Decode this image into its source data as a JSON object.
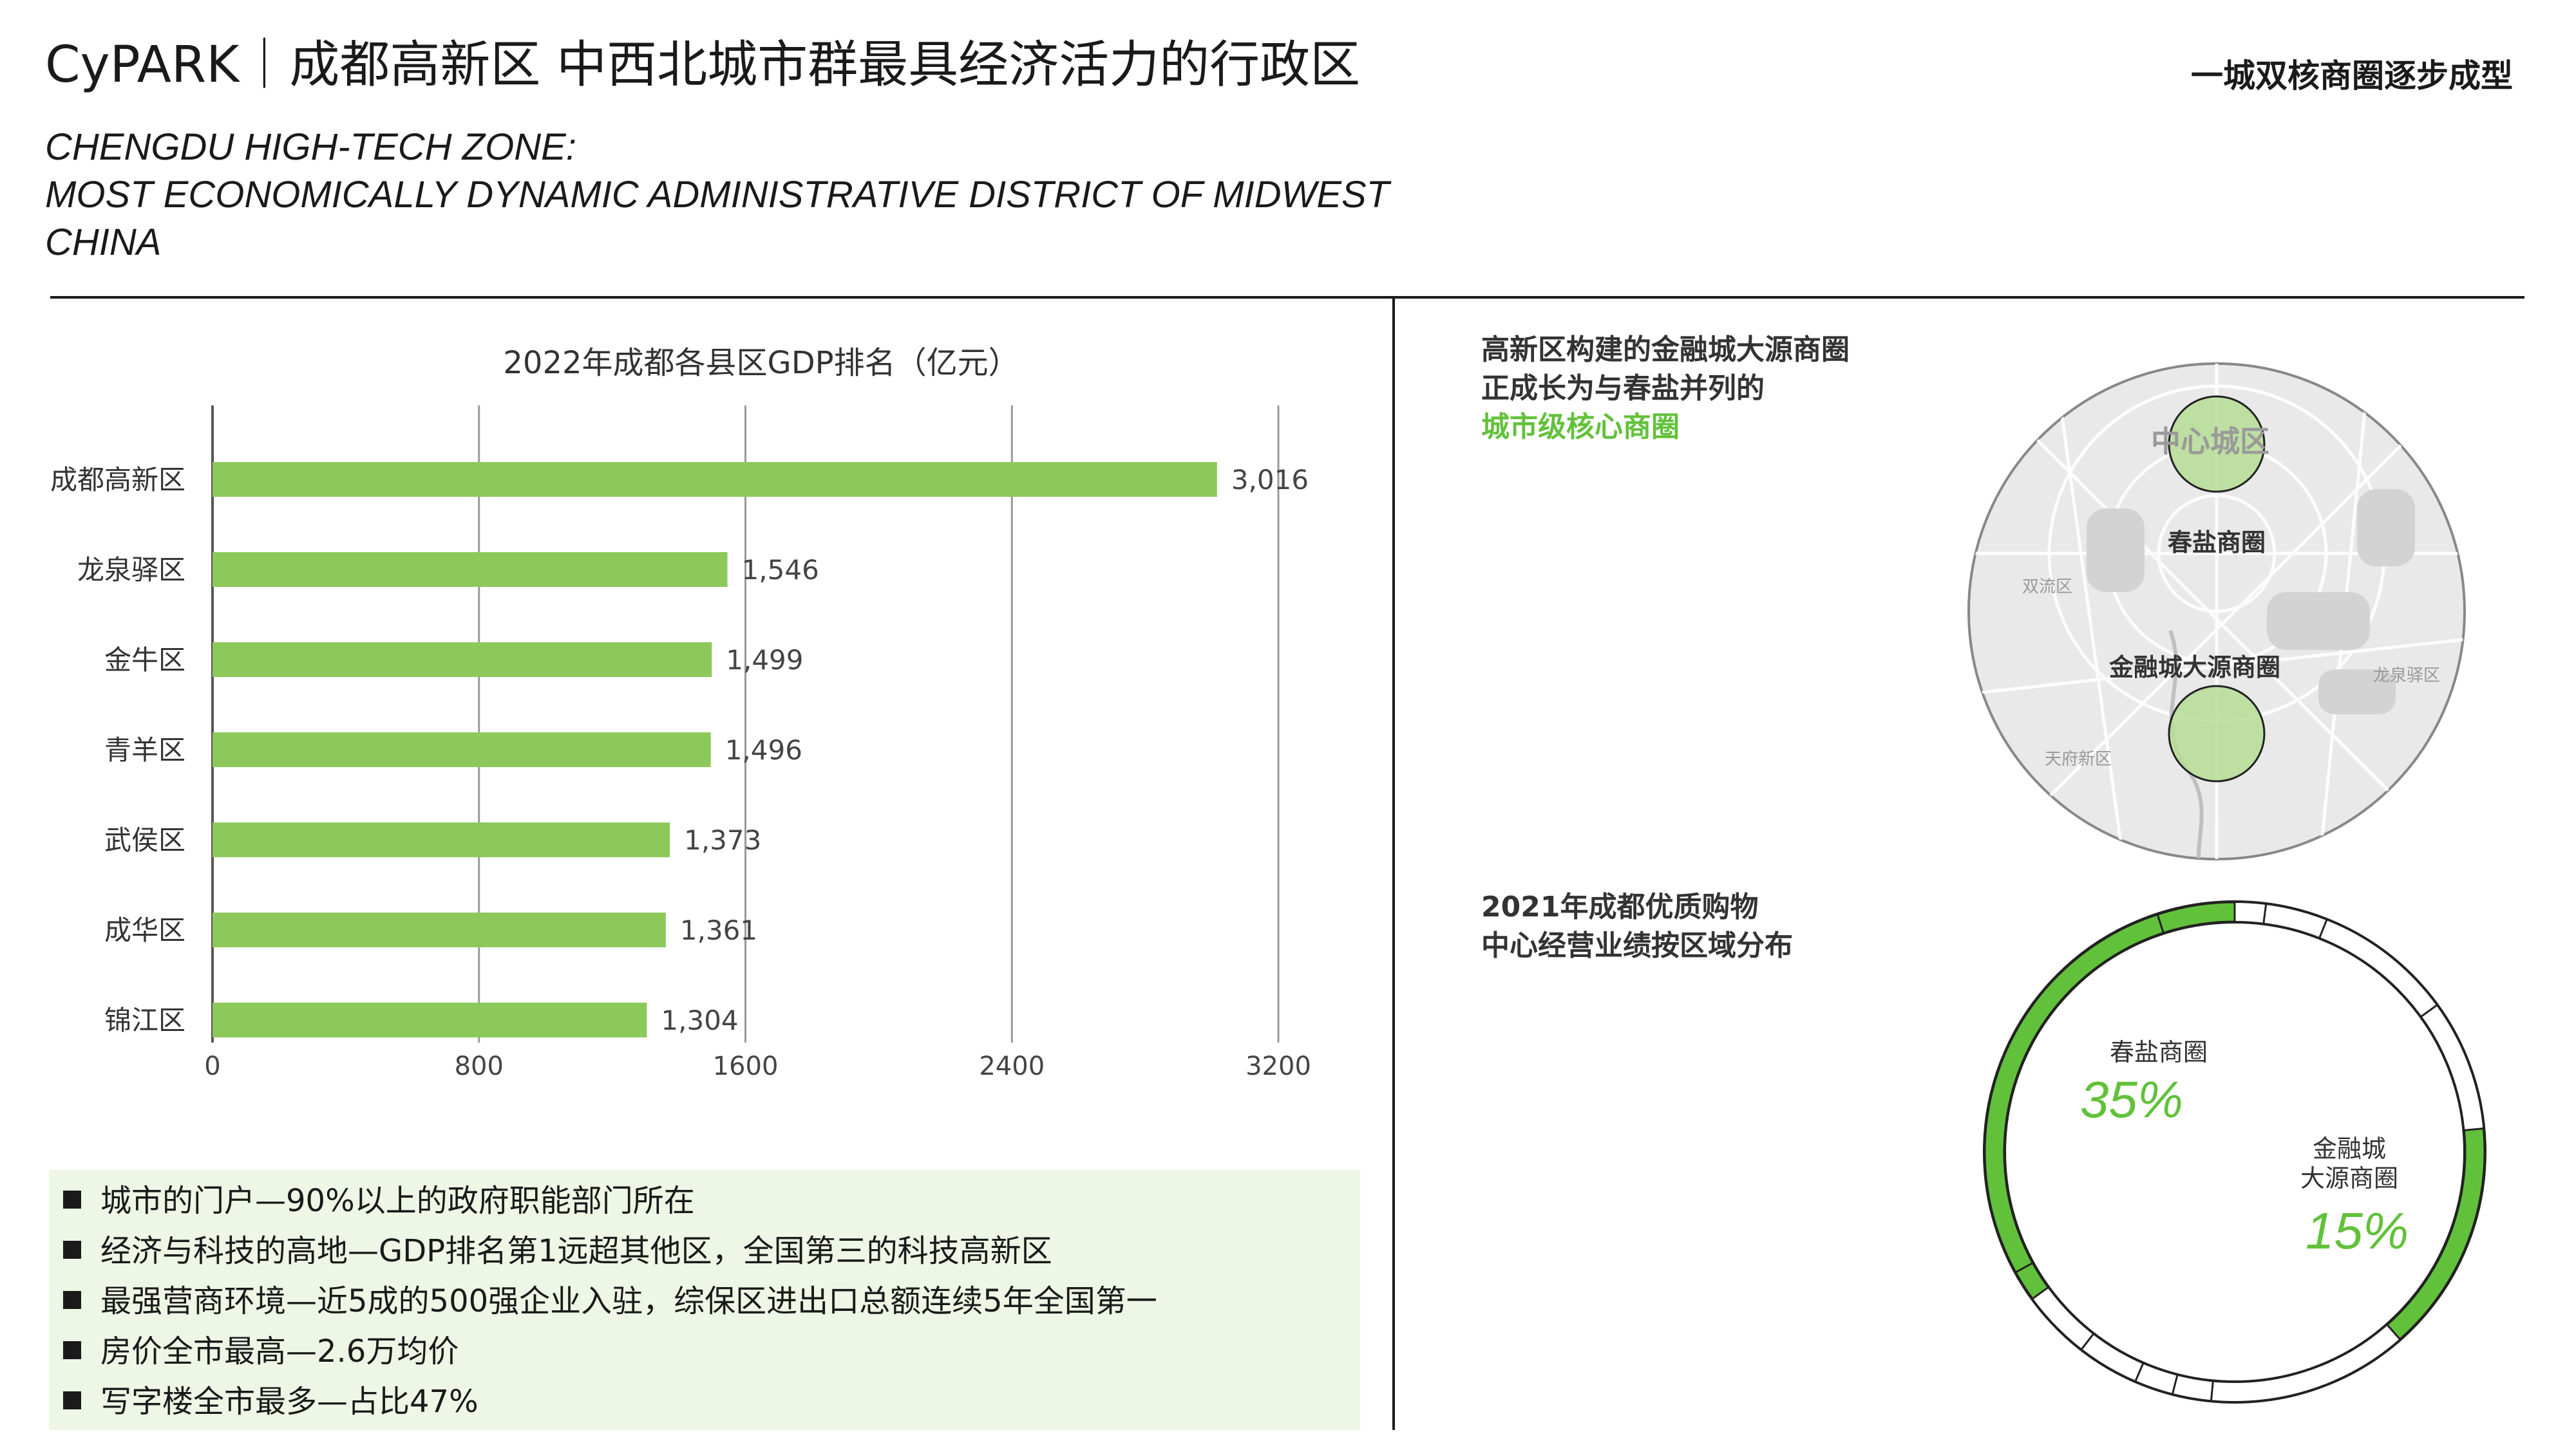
{
  "header": {
    "title": "CyPARK｜成都高新区 中西北城市群最具经济活力的行政区",
    "subtitle_lines": [
      "CHENGDU HIGH-TECH ZONE:",
      "MOST ECONOMICALLY DYNAMIC ADMINISTRATIVE DISTRICT OF MIDWEST",
      "CHINA"
    ],
    "top_right": "一城双核商圈逐步成型"
  },
  "chart_data": {
    "type": "bar",
    "orientation": "horizontal",
    "title": "2022年成都各县区GDP排名（亿元）",
    "categories": [
      "成都高新区",
      "龙泉驿区",
      "金牛区",
      "青羊区",
      "武侯区",
      "成华区",
      "锦江区"
    ],
    "values": [
      3016,
      1546,
      1499,
      1496,
      1373,
      1361,
      1304
    ],
    "value_labels": [
      "3,016",
      "1,546",
      "1,499",
      "1,496",
      "1,373",
      "1,361",
      "1,304"
    ],
    "xlim": [
      0,
      3200
    ],
    "xticks": [
      0,
      800,
      1600,
      2400,
      3200
    ],
    "xtick_labels": [
      "0",
      "800",
      "1600",
      "2400",
      "3200"
    ],
    "grid": "vertical",
    "bar_color": "#8cc95a"
  },
  "bullets": [
    "城市的门户—90%以上的政府职能部门所在",
    "经济与科技的高地—GDP排名第1远超其他区，全国第三的科技高新区",
    "最强营商环境—近5成的500强企业入驻，综保区进出口总额连续5年全国第一",
    "房价全市最高—2.6万均价",
    "写字楼全市最多—占比47%"
  ],
  "map_section": {
    "desc_lines": [
      "高新区构建的金融城大源商圈",
      "正成长为与春盐并列的"
    ],
    "desc_highlight": "城市级核心商圈",
    "labels": {
      "center": "中心城区",
      "chunyan": "春盐商圈",
      "jinrong": "金融城大源商圈",
      "shuangliu": "双流区",
      "longquanyi": "龙泉驿区",
      "tianfu": "天府新区"
    },
    "highlight_color": "#b5dd94"
  },
  "donut_section": {
    "desc_lines": [
      "2021年成都优质购物",
      "中心经营业绩按区域分布"
    ],
    "segments": [
      {
        "name": "春盐商圈",
        "percent": "35%",
        "value": 35
      },
      {
        "name_lines": [
          "金融城",
          "大源商圈"
        ],
        "percent": "15%",
        "value": 15
      }
    ],
    "accent": "#62c13a"
  }
}
